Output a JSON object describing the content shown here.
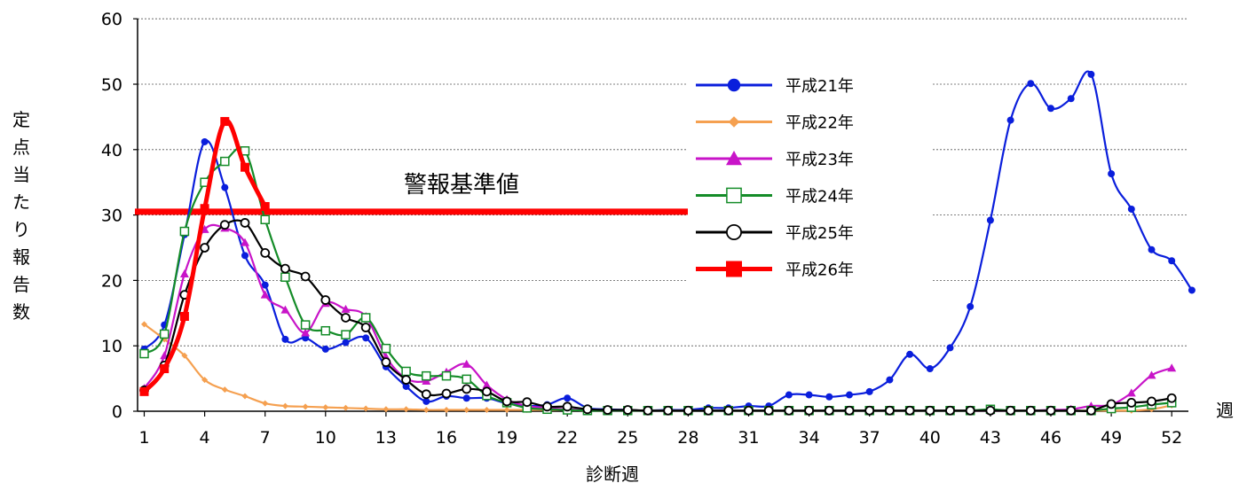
{
  "chart_data": {
    "type": "line",
    "xlabel": "診断週",
    "ylabel": "定点当たり報告数",
    "xunit": "週",
    "ylim": [
      0,
      60
    ],
    "yticks": [
      0,
      10,
      20,
      30,
      40,
      50,
      60
    ],
    "xticks": [
      1,
      4,
      7,
      10,
      13,
      16,
      19,
      22,
      25,
      28,
      31,
      34,
      37,
      40,
      43,
      46,
      49,
      52
    ],
    "grid": "horizontal",
    "legend": "right",
    "annotation": {
      "text": "警報基準値",
      "y": 30.5,
      "x_from": 1,
      "x_to": 28,
      "color": "#ff0000"
    },
    "series": [
      {
        "name": "平成21年",
        "color": "#0a1edc",
        "marker": "circle",
        "x": [
          1,
          2,
          3,
          4,
          5,
          6,
          7,
          8,
          9,
          10,
          11,
          12,
          13,
          14,
          15,
          16,
          17,
          18,
          19,
          20,
          21,
          22,
          23,
          24,
          25,
          26,
          27,
          28,
          29,
          30,
          31,
          32,
          33,
          34,
          35,
          36,
          37,
          38,
          39,
          40,
          41,
          42,
          43,
          44,
          45,
          46,
          47,
          48,
          49,
          50,
          51,
          52,
          53
        ],
        "values": [
          9.5,
          13.2,
          27,
          41.2,
          34.2,
          23.8,
          19.3,
          11,
          11.2,
          9.5,
          10.5,
          11.2,
          6.8,
          3.8,
          1.5,
          2.3,
          2,
          2,
          1.2,
          0.8,
          1,
          2,
          0.5,
          0.3,
          0.2,
          0.1,
          0.2,
          0.2,
          0.5,
          0.5,
          0.8,
          0.8,
          2.5,
          2.5,
          2.2,
          2.5,
          3,
          4.8,
          8.7,
          6.5,
          9.7,
          16,
          29.2,
          44.5,
          50.1,
          46.3,
          47.8,
          51.5,
          36.3,
          30.9,
          24.7,
          23,
          18.5
        ]
      },
      {
        "name": "平成22年",
        "color": "#f5a050",
        "marker": "diamond",
        "x": [
          1,
          2,
          3,
          4,
          5,
          6,
          7,
          8,
          9,
          10,
          11,
          12,
          13,
          14,
          15,
          16,
          17,
          18,
          19,
          20,
          21,
          22,
          23,
          24,
          25,
          26,
          27,
          28,
          29,
          30,
          31,
          32,
          33,
          34,
          35,
          36,
          37,
          38,
          39,
          40,
          41,
          42,
          43,
          44,
          45,
          46,
          47,
          48,
          49,
          50,
          51,
          52
        ],
        "values": [
          13.3,
          11,
          8.5,
          4.8,
          3.3,
          2.3,
          1.2,
          0.8,
          0.7,
          0.6,
          0.5,
          0.4,
          0.3,
          0.3,
          0.2,
          0.2,
          0.2,
          0.2,
          0.2,
          0.2,
          0.2,
          0.2,
          0.1,
          0.1,
          0.1,
          0.1,
          0.1,
          0.1,
          0.1,
          0.1,
          0.1,
          0.1,
          0.1,
          0.1,
          0.1,
          0.1,
          0.1,
          0.1,
          0.1,
          0.1,
          0.1,
          0.1,
          0.1,
          0.1,
          0.1,
          0.1,
          0.1,
          0.1,
          0.1,
          0.1,
          0.3,
          0.9
        ]
      },
      {
        "name": "平成23年",
        "color": "#c814c8",
        "marker": "triangle",
        "x": [
          1,
          2,
          3,
          4,
          5,
          6,
          7,
          8,
          9,
          10,
          11,
          12,
          13,
          14,
          15,
          16,
          17,
          18,
          19,
          20,
          21,
          22,
          23,
          24,
          25,
          26,
          27,
          28,
          29,
          30,
          31,
          32,
          33,
          34,
          35,
          36,
          37,
          38,
          39,
          40,
          41,
          42,
          43,
          44,
          45,
          46,
          47,
          48,
          49,
          50,
          51,
          52
        ],
        "values": [
          3.5,
          8.5,
          21,
          27.8,
          28,
          25.8,
          17.8,
          15.5,
          12,
          16.5,
          15.6,
          14.5,
          8.3,
          5,
          4.6,
          6,
          7.2,
          4,
          1.8,
          0.8,
          0.5,
          0.3,
          0.2,
          0.1,
          0.1,
          0.1,
          0.1,
          0.1,
          0.1,
          0.1,
          0.1,
          0.1,
          0.1,
          0.1,
          0.1,
          0.1,
          0.1,
          0.1,
          0.1,
          0.1,
          0.1,
          0.1,
          0.1,
          0.1,
          0.1,
          0.2,
          0.3,
          0.8,
          1,
          2.8,
          5.5,
          6.6
        ]
      },
      {
        "name": "平成24年",
        "color": "#148c28",
        "marker": "square-open",
        "x": [
          1,
          2,
          3,
          4,
          5,
          6,
          7,
          8,
          9,
          10,
          11,
          12,
          13,
          14,
          15,
          16,
          17,
          18,
          19,
          20,
          21,
          22,
          23,
          24,
          25,
          26,
          27,
          28,
          29,
          30,
          31,
          32,
          33,
          34,
          35,
          36,
          37,
          38,
          39,
          40,
          41,
          42,
          43,
          44,
          45,
          46,
          47,
          48,
          49,
          50,
          51,
          52
        ],
        "values": [
          8.8,
          11.8,
          27.5,
          35,
          38.2,
          39.8,
          29.3,
          20.5,
          13.2,
          12.3,
          11.7,
          14.3,
          9.6,
          6.1,
          5.4,
          5.4,
          4.9,
          2.4,
          1.3,
          0.5,
          0.3,
          0.2,
          0.1,
          0.1,
          0.1,
          0.1,
          0.1,
          0.1,
          0.1,
          0.1,
          0.1,
          0.1,
          0.1,
          0.1,
          0.1,
          0.1,
          0.1,
          0.1,
          0.1,
          0.1,
          0.1,
          0.1,
          0.3,
          0.1,
          0.1,
          0.1,
          0.1,
          0.1,
          0.4,
          0.6,
          1,
          1.3
        ]
      },
      {
        "name": "平成25年",
        "color": "#000000",
        "marker": "circle-open",
        "x": [
          1,
          2,
          3,
          4,
          5,
          6,
          7,
          8,
          9,
          10,
          11,
          12,
          13,
          14,
          15,
          16,
          17,
          18,
          19,
          20,
          21,
          22,
          23,
          24,
          25,
          26,
          27,
          28,
          29,
          30,
          31,
          32,
          33,
          34,
          35,
          36,
          37,
          38,
          39,
          40,
          41,
          42,
          43,
          44,
          45,
          46,
          47,
          48,
          49,
          50,
          51,
          52
        ],
        "values": [
          3.2,
          7,
          17.8,
          25,
          28.5,
          28.8,
          24.2,
          21.8,
          20.6,
          17,
          14.3,
          12.8,
          7.5,
          4.8,
          2.6,
          2.7,
          3.4,
          3,
          1.5,
          1.4,
          0.7,
          0.7,
          0.3,
          0.2,
          0.2,
          0.1,
          0.1,
          0.1,
          0.1,
          0.1,
          0.1,
          0.1,
          0.1,
          0.1,
          0.1,
          0.1,
          0.1,
          0.1,
          0.1,
          0.1,
          0.1,
          0.1,
          0.1,
          0.1,
          0.1,
          0.1,
          0.1,
          0.1,
          1.1,
          1.3,
          1.5,
          2
        ]
      },
      {
        "name": "平成26年",
        "color": "#ff0000",
        "marker": "square",
        "x": [
          1,
          2,
          3,
          4,
          5,
          6,
          7
        ],
        "values": [
          3,
          6.5,
          14.5,
          31,
          44.3,
          37.3,
          31.3
        ]
      }
    ]
  }
}
